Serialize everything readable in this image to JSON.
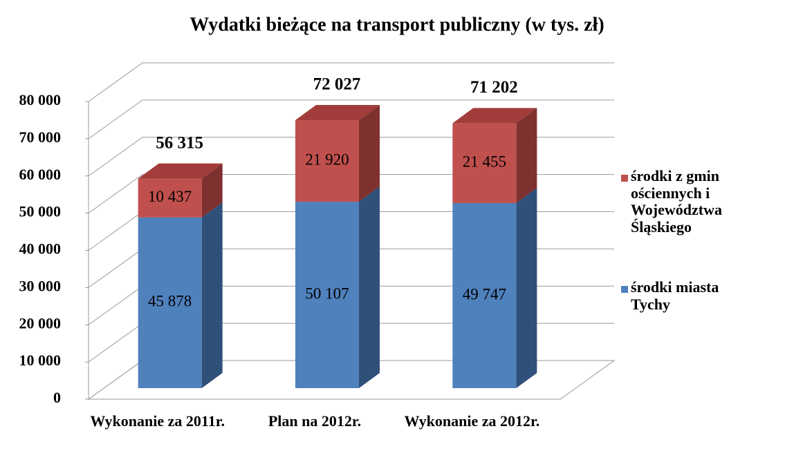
{
  "chart_data": {
    "type": "bar3d_stacked",
    "title": "Wydatki bieżące na transport publiczny (w tys. zł)",
    "categories": [
      "Wykonanie za 2011r.",
      "Plan na 2012r.",
      "Wykonanie za 2012r."
    ],
    "series": [
      {
        "name": "środki miasta Tychy",
        "color": "#4f81bd",
        "side": "#2f5079",
        "top": "#3d6699",
        "values": [
          45878,
          50107,
          49747
        ],
        "value_labels": [
          "45 878",
          "50 107",
          "49 747"
        ]
      },
      {
        "name": "środki z gmin ościennych i Województwa Śląskiego",
        "color": "#c0504d",
        "side": "#7f312f",
        "top": "#a13d3a",
        "values": [
          10437,
          21920,
          21455
        ],
        "value_labels": [
          "10 437",
          "21 920",
          "21 455"
        ]
      }
    ],
    "totals": {
      "values": [
        56315,
        72027,
        71202
      ],
      "value_labels": [
        "56 315",
        "72 027",
        "71 202"
      ]
    },
    "ylim": [
      0,
      80000
    ],
    "yticks": [
      0,
      {
        "value": 10000,
        "label": "10 000"
      },
      {
        "value": 20000,
        "label": "20 000"
      },
      {
        "value": 30000,
        "label": "30 000"
      },
      {
        "value": 40000,
        "label": "40 000"
      },
      {
        "value": 50000,
        "label": "50 000"
      },
      {
        "value": 60000,
        "label": "60 000"
      },
      {
        "value": 70000,
        "label": "70 000"
      },
      {
        "value": 80000,
        "label": "80 000"
      }
    ],
    "grid": true,
    "legend": "right"
  }
}
